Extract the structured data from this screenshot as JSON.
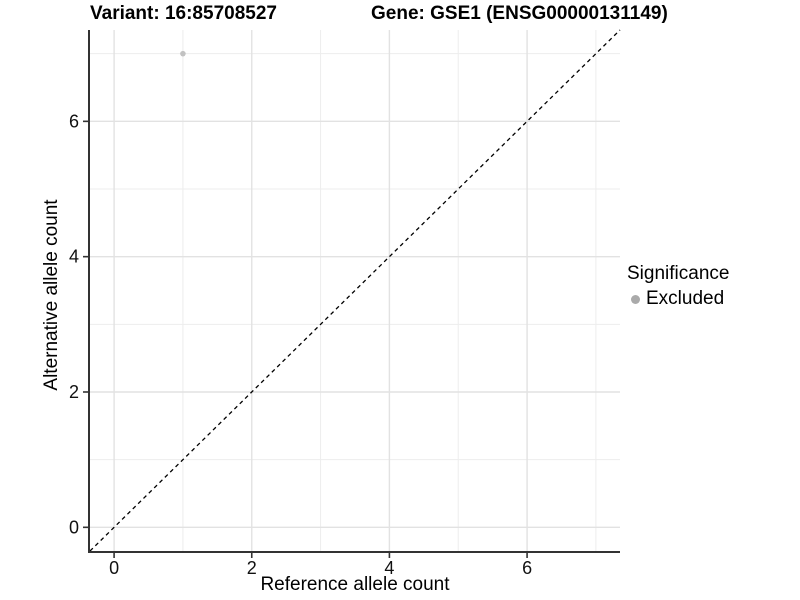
{
  "titles": {
    "variant": "Variant: 16:85708527",
    "gene": "Gene: GSE1 (ENSG00000131149)"
  },
  "chart_data": {
    "type": "scatter",
    "title": "Variant: 16:85708527   Gene: GSE1 (ENSG00000131149)",
    "xlabel": "Reference allele count",
    "ylabel": "Alternative allele count",
    "xlim": [
      -0.35,
      7.35
    ],
    "ylim": [
      -0.35,
      7.35
    ],
    "x_ticks": [
      0,
      2,
      4,
      6
    ],
    "y_ticks": [
      0,
      2,
      4,
      6
    ],
    "minor_grid": [
      1,
      3,
      5,
      7
    ],
    "grid": true,
    "points": [
      {
        "x": 1,
        "y": 7,
        "series": "Excluded"
      }
    ],
    "reference_line": {
      "type": "diagonal",
      "slope": 1,
      "intercept": 0,
      "style": "dashed",
      "color": "#000000"
    },
    "legend": {
      "title": "Significance",
      "position": "right",
      "entries": [
        {
          "label": "Excluded",
          "color": "#aaaaaa",
          "marker": "circle"
        }
      ]
    },
    "colors": {
      "point": "#c2c2c2",
      "grid_major": "#e2e2e2",
      "grid_minor": "#ededed",
      "axis": "#333333",
      "tick_label": "#111111",
      "background": "#ffffff"
    }
  }
}
